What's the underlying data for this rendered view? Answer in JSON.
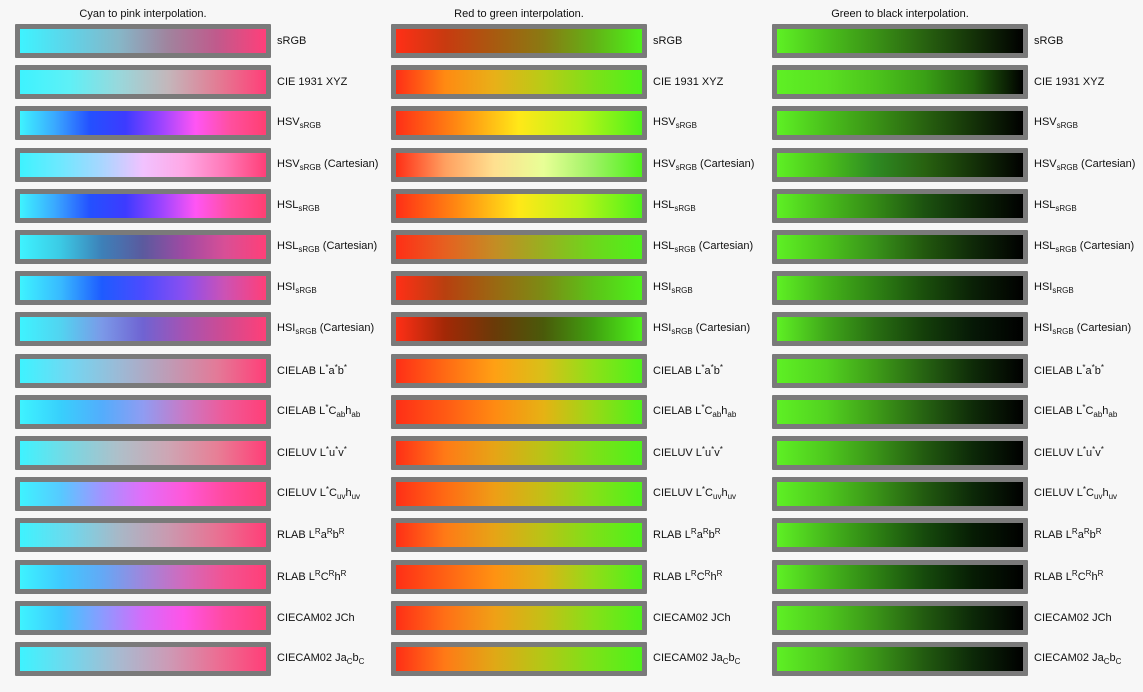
{
  "columns": [
    {
      "title": "Cyan to pink interpolation.",
      "gradients": [
        [
          "#3ef3ff",
          "#5fd3e8",
          "#86b7c8",
          "#a0849e",
          "#c05a8c",
          "#ff3f7a"
        ],
        [
          "#3ef3ff",
          "#5ef0f6",
          "#98d8dc",
          "#c3b7bb",
          "#e27d95",
          "#ff3f78"
        ],
        [
          "#3ef3ff",
          "#3aa8ff",
          "#2450ff",
          "#3d3bff",
          "#9a44ff",
          "#ff55f4",
          "#ff4f9e",
          "#ff3f72"
        ],
        [
          "#3ef3ff",
          "#6fe8ff",
          "#a9d6ff",
          "#f1c2ff",
          "#ffa8e6",
          "#ff78b7",
          "#ff3f78"
        ],
        [
          "#3ef3ff",
          "#3aa8ff",
          "#2450ff",
          "#3d3bff",
          "#9a44ff",
          "#ff55f4",
          "#ff4f9e",
          "#ff3f72"
        ],
        [
          "#3ef3ff",
          "#3bc9e4",
          "#3d80b8",
          "#5b5a9e",
          "#9f4aa3",
          "#d84f96",
          "#ff3f78"
        ],
        [
          "#3ef3ff",
          "#38b9ff",
          "#1e5bff",
          "#4c4bff",
          "#8a4ff0",
          "#cc52b4",
          "#ff3f78"
        ],
        [
          "#3ef3ff",
          "#52d3f0",
          "#7b99e8",
          "#6f63d2",
          "#a553b3",
          "#d04b91",
          "#ff3f78"
        ],
        [
          "#3ef3ff",
          "#72d7f2",
          "#9bbad6",
          "#be9cb6",
          "#e37a98",
          "#ff3f78"
        ],
        [
          "#3ef3ff",
          "#38cffc",
          "#53adfc",
          "#8f9cf2",
          "#c87ac6",
          "#ef5a98",
          "#ff3f78"
        ],
        [
          "#3ef3ff",
          "#7ad7e2",
          "#aebfc9",
          "#cda6b4",
          "#e77f96",
          "#ff3f78"
        ],
        [
          "#3ef3ff",
          "#57c9ff",
          "#a393ff",
          "#e16ef9",
          "#ff58d8",
          "#ff4a9e",
          "#ff3f78"
        ],
        [
          "#3ef3ff",
          "#6fd8ec",
          "#a7b8c7",
          "#c99ab0",
          "#e87293",
          "#ff3f78"
        ],
        [
          "#3ef3ff",
          "#3fc9ff",
          "#63a9f5",
          "#9f86dc",
          "#d26abc",
          "#f25392",
          "#ff3f78"
        ],
        [
          "#3ef3ff",
          "#3ec8ff",
          "#8b9bff",
          "#d46cfa",
          "#ff53e7",
          "#ff4aa0",
          "#ff3f78"
        ],
        [
          "#3ef3ff",
          "#72d7ec",
          "#a8bad0",
          "#cc9bb6",
          "#eb6f94",
          "#ff3f78"
        ]
      ],
      "labels": [
        {
          "main": "sRGB"
        },
        {
          "main": "CIE 1931 XYZ"
        },
        {
          "main": "HSV",
          "sub": "sRGB"
        },
        {
          "main": "HSV",
          "sub": "sRGB",
          "suffix": " (Cartesian)"
        },
        {
          "main": "HSL",
          "sub": "sRGB"
        },
        {
          "main": "HSL",
          "sub": "sRGB",
          "suffix": " (Cartesian)"
        },
        {
          "main": "HSI",
          "sub": "sRGB"
        },
        {
          "main": "HSI",
          "sub": "sRGB",
          "suffix": " (Cartesian)"
        },
        {
          "html": "CIELAB L<sup>*</sup>a<sup>*</sup>b<sup>*</sup>"
        },
        {
          "html": "CIELAB L<sup>*</sup>C<sub>ab</sub>h<sub>ab</sub>"
        },
        {
          "html": "CIELUV L<sup>*</sup>u<sup>*</sup>v<sup>*</sup>"
        },
        {
          "html": "CIELUV L<sup>*</sup>C<sub>uv</sub>h<sub>uv</sub>"
        },
        {
          "html": "RLAB L<sup>R</sup>a<sup>R</sup>b<sup>R</sup>"
        },
        {
          "html": "RLAB L<sup>R</sup>C<sup>R</sup>h<sup>R</sup>"
        },
        {
          "main": "CIECAM02 JCh"
        },
        {
          "html": "CIECAM02 Ja<sub>C</sub>b<sub>C</sub>"
        }
      ]
    },
    {
      "title": "Red to green interpolation.",
      "gradients": [
        [
          "#ff2f16",
          "#c83a10",
          "#a85a10",
          "#8a7a12",
          "#63b016",
          "#4ef21a"
        ],
        [
          "#ff2f16",
          "#ff8a12",
          "#e8b018",
          "#b8cc16",
          "#7ee018",
          "#4ef21a"
        ],
        [
          "#ff2f16",
          "#ff8a12",
          "#ffe818",
          "#b8f418",
          "#4ef21a"
        ],
        [
          "#ff2f16",
          "#ffa060",
          "#ffe090",
          "#e8ff96",
          "#9ef264",
          "#4ef21a"
        ],
        [
          "#ff2f16",
          "#ff8a12",
          "#ffe818",
          "#b8f418",
          "#4ef21a"
        ],
        [
          "#ff2f16",
          "#e66020",
          "#c48c24",
          "#98b020",
          "#6ed61c",
          "#4ef21a"
        ],
        [
          "#ff2f16",
          "#b8400f",
          "#9a6812",
          "#7c8c14",
          "#5cc218",
          "#4ef21a"
        ],
        [
          "#ff2f16",
          "#a22806",
          "#6a3a08",
          "#4a5a0a",
          "#40a010",
          "#4ef21a"
        ],
        [
          "#ff2f16",
          "#ff6a14",
          "#ffa014",
          "#d8c018",
          "#8ee018",
          "#4ef21a"
        ],
        [
          "#ff2f16",
          "#ff5a14",
          "#ff8a12",
          "#e6b214",
          "#9ad816",
          "#4ef21a"
        ],
        [
          "#ff2f16",
          "#ff7a16",
          "#e6a416",
          "#b8c416",
          "#7ee018",
          "#4ef21a"
        ],
        [
          "#ff2f16",
          "#ff6a14",
          "#ee9e16",
          "#c2c016",
          "#86e018",
          "#4ef21a"
        ],
        [
          "#ff2f16",
          "#ff7a16",
          "#e6a416",
          "#b8c416",
          "#7ee018",
          "#4ef21a"
        ],
        [
          "#ff2f16",
          "#ff6214",
          "#ff9212",
          "#dcb416",
          "#92dc18",
          "#4ef21a"
        ],
        [
          "#ff2f16",
          "#ff7016",
          "#f0a016",
          "#c4c016",
          "#86e018",
          "#4ef21a"
        ],
        [
          "#ff2f16",
          "#ff7a16",
          "#e0a816",
          "#b2c816",
          "#7ce218",
          "#4ef21a"
        ]
      ],
      "labels": [
        {
          "main": "sRGB"
        },
        {
          "main": "CIE 1931 XYZ"
        },
        {
          "main": "HSV",
          "sub": "sRGB"
        },
        {
          "main": "HSV",
          "sub": "sRGB",
          "suffix": " (Cartesian)"
        },
        {
          "main": "HSL",
          "sub": "sRGB"
        },
        {
          "main": "HSL",
          "sub": "sRGB",
          "suffix": " (Cartesian)"
        },
        {
          "main": "HSI",
          "sub": "sRGB"
        },
        {
          "main": "HSI",
          "sub": "sRGB",
          "suffix": " (Cartesian)"
        },
        {
          "html": "CIELAB L<sup>*</sup>a<sup>*</sup>b<sup>*</sup>"
        },
        {
          "html": "CIELAB L<sup>*</sup>C<sub>ab</sub>h<sub>ab</sub>"
        },
        {
          "html": "CIELUV L<sup>*</sup>u<sup>*</sup>v<sup>*</sup>"
        },
        {
          "html": "CIELUV L<sup>*</sup>C<sub>uv</sub>h<sub>uv</sub>"
        },
        {
          "html": "RLAB L<sup>R</sup>a<sup>R</sup>b<sup>R</sup>"
        },
        {
          "html": "RLAB L<sup>R</sup>C<sup>R</sup>h<sup>R</sup>"
        },
        {
          "main": "CIECAM02 JCh"
        },
        {
          "html": "CIECAM02 Ja<sub>C</sub>b<sub>C</sub>"
        }
      ]
    },
    {
      "title": "Green to black interpolation.",
      "gradients": [
        [
          "#5ef024",
          "#4ac01c",
          "#3a9216",
          "#286210",
          "#143208",
          "#000000"
        ],
        [
          "#5ef024",
          "#5ae022",
          "#4cc41c",
          "#3aa016",
          "#22640c",
          "#000000"
        ],
        [
          "#5ef024",
          "#4ac01c",
          "#3a9216",
          "#286210",
          "#143208",
          "#000000"
        ],
        [
          "#5ef024",
          "#4ac01c",
          "#2e8a22",
          "#286210",
          "#143208",
          "#000000"
        ],
        [
          "#5ef024",
          "#48bc1c",
          "#348a16",
          "#1c5210",
          "#0c2606",
          "#000000"
        ],
        [
          "#5ef024",
          "#4cc41c",
          "#38921a",
          "#22580e",
          "#0e2808",
          "#000000"
        ],
        [
          "#5ef024",
          "#44b41a",
          "#2e8214",
          "#1a4e0c",
          "#0a2006",
          "#000000"
        ],
        [
          "#5ef024",
          "#40a81a",
          "#286e12",
          "#143e0a",
          "#061806",
          "#000000"
        ],
        [
          "#5ef024",
          "#52d220",
          "#3e9c18",
          "#266212",
          "#0e2a08",
          "#000000"
        ],
        [
          "#5ef024",
          "#52d220",
          "#3e9c18",
          "#266212",
          "#0e2a08",
          "#000000"
        ],
        [
          "#5ef024",
          "#4ec81e",
          "#3a9418",
          "#225a10",
          "#0c2808",
          "#000000"
        ],
        [
          "#5ef024",
          "#4ec81e",
          "#3a9418",
          "#225a10",
          "#0c2808",
          "#000000"
        ],
        [
          "#5ef024",
          "#46b81c",
          "#2e8214",
          "#164a0c",
          "#061c04",
          "#000000"
        ],
        [
          "#5ef024",
          "#46b81c",
          "#2e8214",
          "#164a0c",
          "#061c04",
          "#000000"
        ],
        [
          "#5ef024",
          "#4ec81e",
          "#3a9418",
          "#225a10",
          "#0c2808",
          "#000000"
        ],
        [
          "#5ef024",
          "#4ec81e",
          "#3a9418",
          "#225a10",
          "#0c2808",
          "#000000"
        ]
      ],
      "labels": [
        {
          "main": "sRGB"
        },
        {
          "main": "CIE 1931 XYZ"
        },
        {
          "main": "HSV",
          "sub": "sRGB"
        },
        {
          "main": "HSV",
          "sub": "sRGB",
          "suffix": " (Cartesian)"
        },
        {
          "main": "HSL",
          "sub": "sRGB"
        },
        {
          "main": "HSL",
          "sub": "sRGB",
          "suffix": " (Cartesian)"
        },
        {
          "main": "HSI",
          "sub": "sRGB"
        },
        {
          "main": "HSI",
          "sub": "sRGB",
          "suffix": " (Cartesian)"
        },
        {
          "html": "CIELAB L<sup>*</sup>a<sup>*</sup>b<sup>*</sup>"
        },
        {
          "html": "CIELAB L<sup>*</sup>C<sub>ab</sub>h<sub>ab</sub>"
        },
        {
          "html": "CIELUV L<sup>*</sup>u<sup>*</sup>v<sup>*</sup>"
        },
        {
          "html": "CIELUV L<sup>*</sup>C<sub>uv</sub>h<sub>uv</sub>"
        },
        {
          "html": "RLAB L<sup>R</sup>a<sup>R</sup>b<sup>R</sup>"
        },
        {
          "html": "RLAB L<sup>R</sup>C<sup>R</sup>h<sup>R</sup>"
        },
        {
          "main": "CIECAM02 JCh"
        },
        {
          "html": "CIECAM02 Ja<sub>C</sub>b<sub>C</sub>"
        }
      ]
    }
  ]
}
